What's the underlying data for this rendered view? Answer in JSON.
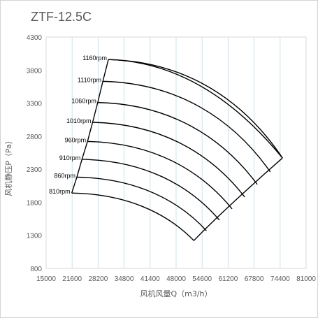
{
  "chart_data": {
    "type": "line",
    "title": "ZTF-12.5C",
    "xlabel": "风机风量Q（m3/h）",
    "ylabel": "风机静压P（Pa）",
    "xlim": [
      15000,
      81000
    ],
    "ylim": [
      800,
      4300
    ],
    "x_ticks": [
      "15000",
      "21600",
      "28200",
      "34800",
      "41400",
      "48000",
      "54600",
      "61200",
      "67800",
      "74400",
      "81000"
    ],
    "y_ticks": [
      "800",
      "1300",
      "1800",
      "2300",
      "2800",
      "3300",
      "3800",
      "4300"
    ],
    "grid": "vertical",
    "series": [
      {
        "name": "1160rpm",
        "x": [
          30800,
          75000
        ],
        "y": [
          3960,
          2470
        ]
      },
      {
        "name": "1110rpm",
        "x": [
          29400,
          71900
        ],
        "y": [
          3630,
          2260
        ]
      },
      {
        "name": "1060rpm",
        "x": [
          28100,
          68600
        ],
        "y": [
          3310,
          2070
        ]
      },
      {
        "name": "1010rpm",
        "x": [
          26800,
          65400
        ],
        "y": [
          3010,
          1880
        ]
      },
      {
        "name": "960rpm",
        "x": [
          25500,
          62200
        ],
        "y": [
          2720,
          1700
        ]
      },
      {
        "name": "910rpm",
        "x": [
          24100,
          59000
        ],
        "y": [
          2450,
          1530
        ]
      },
      {
        "name": "860rpm",
        "x": [
          22800,
          55700
        ],
        "y": [
          2180,
          1370
        ]
      },
      {
        "name": "810rpm",
        "x": [
          21500,
          52500
        ],
        "y": [
          1940,
          1220
        ]
      }
    ]
  }
}
